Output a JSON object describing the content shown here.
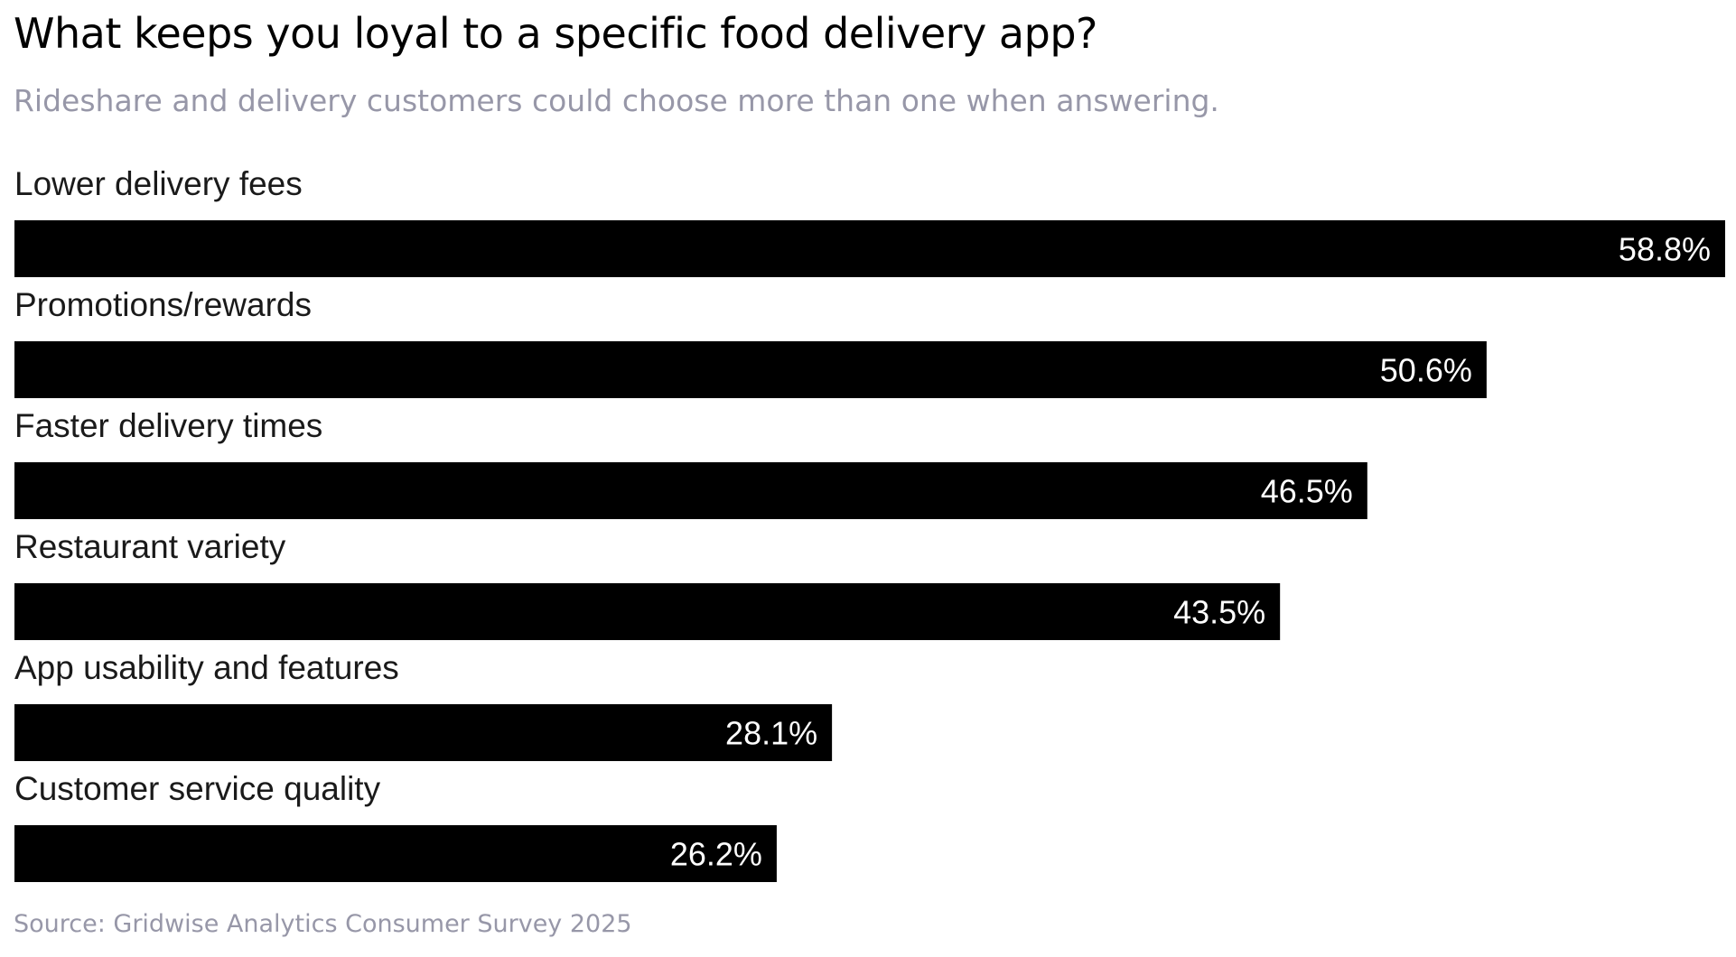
{
  "chart_data": {
    "type": "bar",
    "orientation": "horizontal",
    "title": "What keeps you loyal to a specific food delivery app?",
    "subtitle": "Rideshare and delivery customers could choose more than one when answering.",
    "source": "Source: Gridwise Analytics Consumer Survey 2025",
    "categories": [
      "Lower delivery fees",
      "Promotions/rewards",
      "Faster delivery times",
      "Restaurant variety",
      "App usability and features",
      "Customer service quality"
    ],
    "values": [
      58.8,
      50.6,
      46.5,
      43.5,
      28.1,
      26.2
    ],
    "value_labels": [
      "58.8%",
      "50.6%",
      "46.5%",
      "43.5%",
      "28.1%",
      "26.2%"
    ],
    "unit": "%",
    "xlim": [
      0,
      58.8
    ],
    "grid": false,
    "legend": "none",
    "colors": {
      "bar": "#000000",
      "bar_label": "#ffffff",
      "category_label": "#1a1a1a",
      "title": "#000000",
      "muted_text": "#9797a8"
    }
  }
}
